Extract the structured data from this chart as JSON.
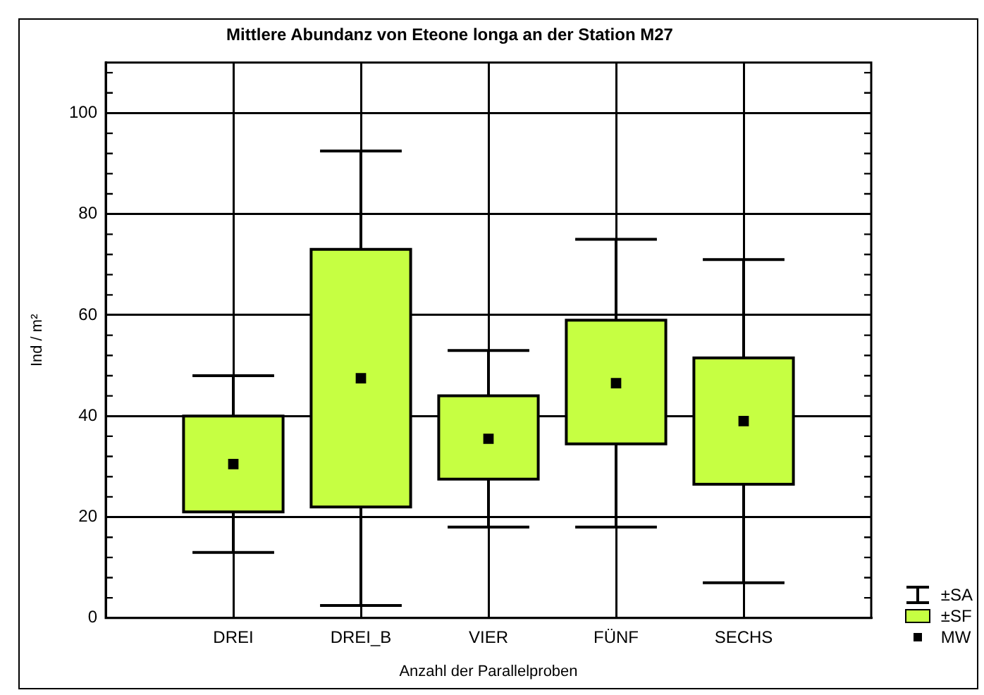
{
  "chart_data": {
    "type": "box",
    "title": "Mittlere Abundanz von Eteone longa an der Station M27",
    "xlabel": "Anzahl der Parallelproben",
    "ylabel": "Ind / m²",
    "annotations": [
      "±SA",
      "±SF",
      "MW"
    ],
    "categories": [
      "DREI",
      "DREI_B",
      "VIER",
      "FÜNF",
      "SECHS"
    ],
    "boxes": [
      {
        "low": 13,
        "q1": 21,
        "q3": 40,
        "high": 48,
        "mean": 30.5
      },
      {
        "low": 2.5,
        "q1": 22,
        "q3": 73,
        "high": 92.5,
        "mean": 47.5
      },
      {
        "low": 18,
        "q1": 27.5,
        "q3": 44,
        "high": 53,
        "mean": 35.5
      },
      {
        "low": 18,
        "q1": 34.5,
        "q3": 59,
        "high": 75,
        "mean": 46.5
      },
      {
        "low": 7,
        "q1": 26.5,
        "q3": 51.5,
        "high": 71,
        "mean": 39
      }
    ],
    "color": "#c6ff42",
    "marker": "square",
    "ylim": [
      0,
      110
    ],
    "yticks": [
      0,
      {
        "value": 4,
        "label": null
      },
      {
        "value": 8,
        "label": null
      },
      {
        "value": 12,
        "label": null
      },
      {
        "value": 16,
        "label": null
      },
      20,
      {
        "value": 24,
        "label": null
      },
      {
        "value": 28,
        "label": null
      },
      {
        "value": 32,
        "label": null
      },
      {
        "value": 36,
        "label": null
      },
      40,
      {
        "value": 44,
        "label": null
      },
      {
        "value": 48,
        "label": null
      },
      {
        "value": 52,
        "label": null
      },
      {
        "value": 56,
        "label": null
      },
      60,
      {
        "value": 64,
        "label": null
      },
      {
        "value": 68,
        "label": null
      },
      {
        "value": 72,
        "label": null
      },
      {
        "value": 76,
        "label": null
      },
      80,
      {
        "value": 84,
        "label": null
      },
      {
        "value": 88,
        "label": null
      },
      {
        "value": 92,
        "label": null
      },
      {
        "value": 96,
        "label": null
      },
      100,
      {
        "value": 104,
        "label": null
      },
      {
        "value": 108,
        "label": null
      }
    ],
    "grid": true
  }
}
